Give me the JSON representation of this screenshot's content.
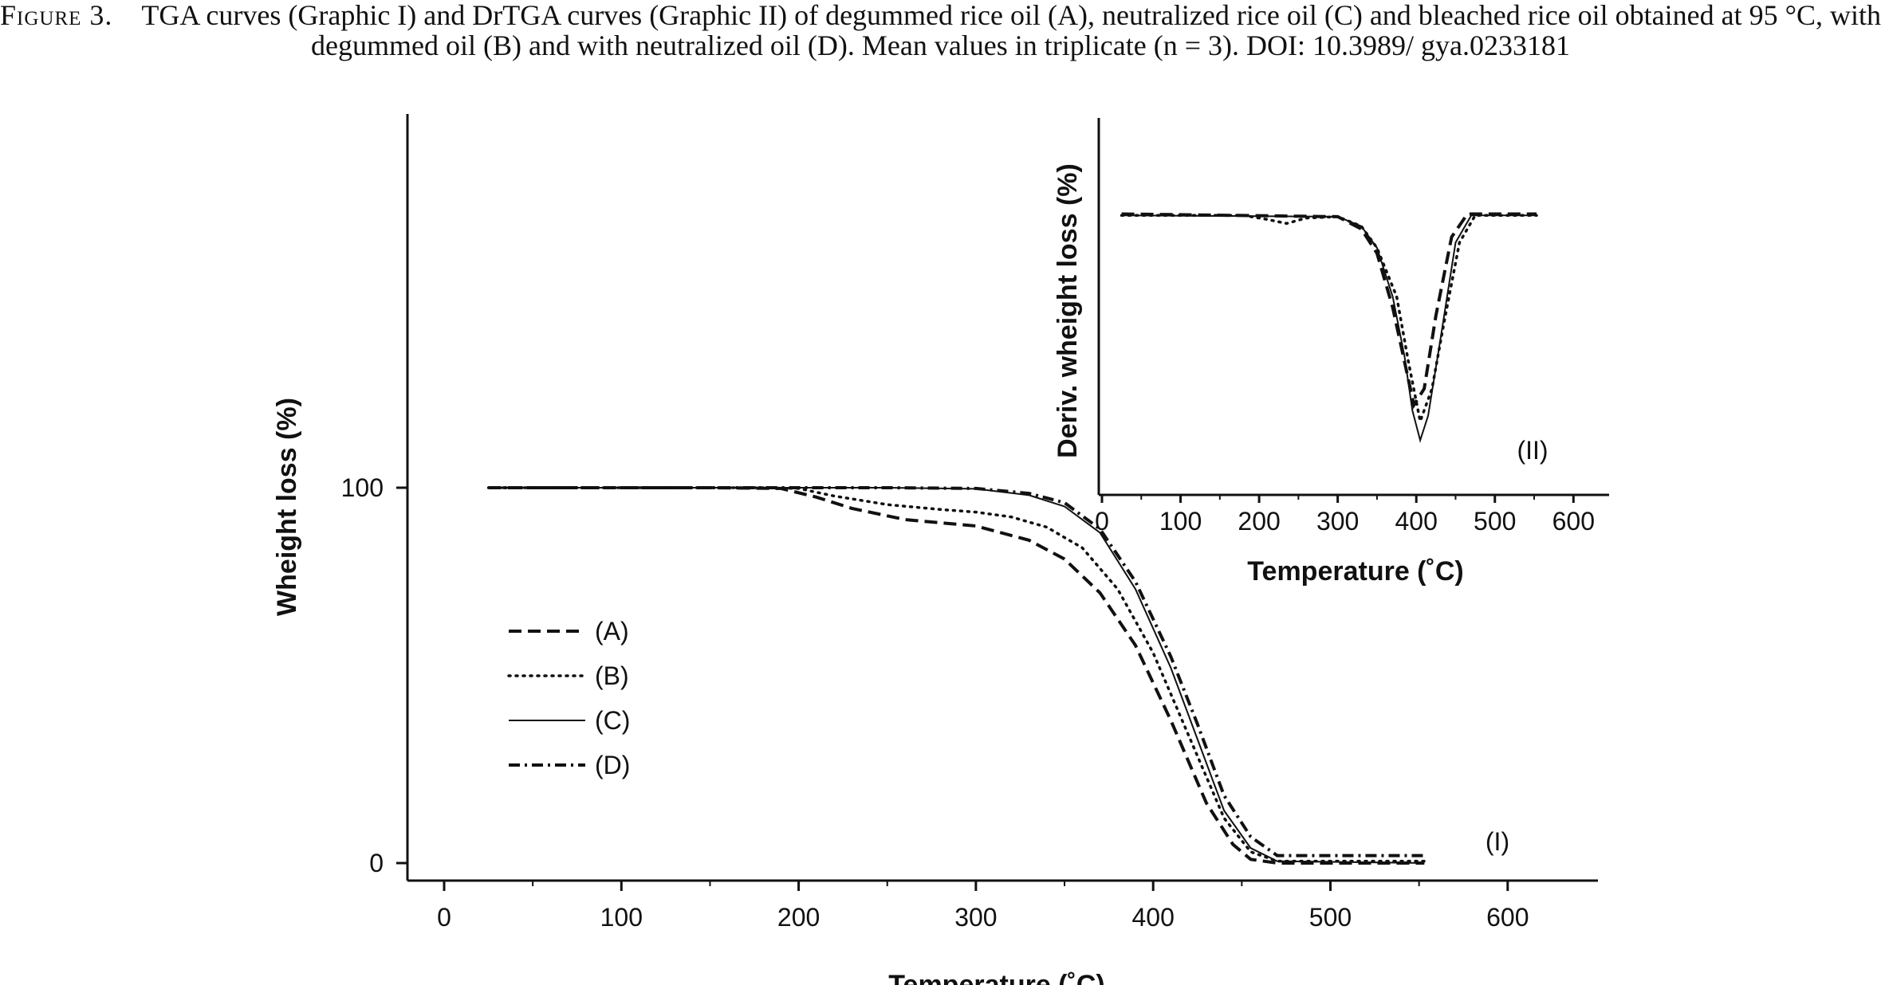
{
  "caption": {
    "lead": "Figure 3.",
    "text": "TGA curves (Graphic I) and DrTGA curves (Graphic II) of degummed rice oil (A), neutralized rice oil (C) and bleached rice oil obtained at 95 °C, with degummed oil (B) and with neutralized oil (D). Mean values in triplicate (n = 3). DOI: 10.3989/ gya.0233181"
  },
  "chart_data": [
    {
      "type": "line",
      "panel_label": "(I)",
      "xlabel": "Temperature (˚C)",
      "ylabel": "Wheight loss (%)",
      "xlim": [
        -25,
        650
      ],
      "ylim": [
        0,
        200
      ],
      "x_ticks": [
        0,
        100,
        200,
        300,
        400,
        500,
        600
      ],
      "y_ticks": [
        0,
        100
      ],
      "grid": false,
      "legend_position": "left",
      "series": [
        {
          "name": "(A)",
          "style": "dashed",
          "points": [
            [
              25,
              100
            ],
            [
              150,
              100
            ],
            [
              190,
              99.8
            ],
            [
              210,
              97.5
            ],
            [
              230,
              94.5
            ],
            [
              260,
              91.5
            ],
            [
              300,
              89.8
            ],
            [
              330,
              86
            ],
            [
              350,
              81
            ],
            [
              370,
              72
            ],
            [
              390,
              58
            ],
            [
              410,
              38
            ],
            [
              430,
              16
            ],
            [
              445,
              5
            ],
            [
              455,
              1
            ],
            [
              470,
              0
            ],
            [
              553,
              0
            ]
          ]
        },
        {
          "name": "(B)",
          "style": "dotted",
          "points": [
            [
              25,
              100
            ],
            [
              180,
              100
            ],
            [
              200,
              99.8
            ],
            [
              220,
              97.8
            ],
            [
              250,
              95.5
            ],
            [
              280,
              94.2
            ],
            [
              300,
              93.5
            ],
            [
              320,
              92.2
            ],
            [
              340,
              89.5
            ],
            [
              360,
              84
            ],
            [
              380,
              73
            ],
            [
              400,
              56
            ],
            [
              420,
              34
            ],
            [
              440,
              12
            ],
            [
              455,
              3
            ],
            [
              470,
              0.5
            ],
            [
              553,
              0.5
            ]
          ]
        },
        {
          "name": "(C)",
          "style": "solid",
          "points": [
            [
              25,
              100
            ],
            [
              250,
              100
            ],
            [
              300,
              99.7
            ],
            [
              330,
              98
            ],
            [
              350,
              95
            ],
            [
              370,
              88
            ],
            [
              390,
              73
            ],
            [
              410,
              52
            ],
            [
              425,
              33
            ],
            [
              440,
              14
            ],
            [
              455,
              4
            ],
            [
              470,
              0.5
            ],
            [
              553,
              0
            ]
          ]
        },
        {
          "name": "(D)",
          "style": "dashdot",
          "points": [
            [
              25,
              100
            ],
            [
              250,
              100
            ],
            [
              300,
              99.8
            ],
            [
              330,
              98.5
            ],
            [
              350,
              96
            ],
            [
              370,
              89
            ],
            [
              390,
              75
            ],
            [
              410,
              55
            ],
            [
              425,
              37
            ],
            [
              440,
              18
            ],
            [
              455,
              7
            ],
            [
              470,
              2
            ],
            [
              553,
              2
            ]
          ]
        }
      ]
    },
    {
      "type": "line",
      "panel_label": "(II)",
      "xlabel": "Temperature (˚C)",
      "ylabel": "Deriv. wheight loss (%)",
      "xlim": [
        -5,
        645
      ],
      "ylim": [
        0,
        100
      ],
      "x_ticks": [
        0,
        100,
        200,
        300,
        400,
        500,
        600
      ],
      "y_ticks": [],
      "grid": false,
      "series": [
        {
          "style": "solid",
          "points": [
            [
              25,
              92
            ],
            [
              300,
              91.5
            ],
            [
              330,
              88
            ],
            [
              350,
              80
            ],
            [
              370,
              62
            ],
            [
              385,
              40
            ],
            [
              395,
              20
            ],
            [
              405,
              9
            ],
            [
              415,
              18
            ],
            [
              430,
              45
            ],
            [
              450,
              82
            ],
            [
              470,
              92
            ],
            [
              553,
              92
            ]
          ]
        },
        {
          "style": "dotted",
          "points": [
            [
              25,
              92
            ],
            [
              180,
              92
            ],
            [
              210,
              90.5
            ],
            [
              235,
              89
            ],
            [
              260,
              91
            ],
            [
              300,
              91.5
            ],
            [
              330,
              88
            ],
            [
              350,
              80
            ],
            [
              375,
              62
            ],
            [
              390,
              38
            ],
            [
              405,
              16
            ],
            [
              420,
              28
            ],
            [
              435,
              52
            ],
            [
              455,
              82
            ],
            [
              475,
              92
            ],
            [
              553,
              92
            ]
          ]
        },
        {
          "style": "dashed",
          "points": [
            [
              25,
              92.5
            ],
            [
              300,
              91.5
            ],
            [
              330,
              87
            ],
            [
              350,
              78
            ],
            [
              370,
              58
            ],
            [
              385,
              38
            ],
            [
              397,
              22
            ],
            [
              410,
              28
            ],
            [
              425,
              55
            ],
            [
              445,
              84
            ],
            [
              465,
              92.5
            ],
            [
              553,
              92.5
            ]
          ]
        }
      ]
    }
  ]
}
